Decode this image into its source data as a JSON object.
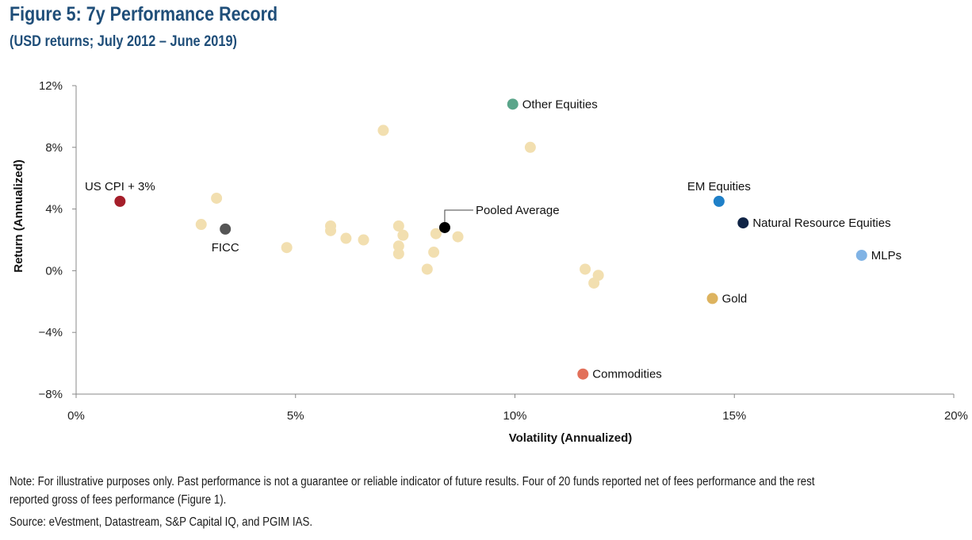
{
  "title": "Figure 5: 7y Performance Record",
  "subtitle": "(USD returns; July 2012 – June 2019)",
  "note": "Note: For illustrative purposes only. Past performance is not a guarantee or reliable indicator of future results. Four of 20 funds reported net of fees performance and the rest reported gross of fees performance (Figure 1).",
  "source": "Source: eVestment, Datastream, S&P Capital IQ, and PGIM IAS.",
  "colors": {
    "title": "#1f4e79",
    "fund": "#f2dfb0",
    "axis": "#888888"
  },
  "chart_data": {
    "type": "scatter",
    "xlabel": "Volatility (Annualized)",
    "ylabel": "Return (Annualized)",
    "xlim": [
      0,
      20
    ],
    "ylim": [
      -8,
      12
    ],
    "xticks": [
      0,
      5,
      10,
      15,
      20
    ],
    "yticks": [
      -8,
      -4,
      0,
      4,
      8,
      12
    ],
    "xtick_labels": [
      "0%",
      "5%",
      "10%",
      "15%",
      "20%"
    ],
    "ytick_labels": [
      "−8%",
      "−4%",
      "0%",
      "4%",
      "8%",
      "12%"
    ],
    "funds": [
      {
        "x": 2.85,
        "y": 3.0
      },
      {
        "x": 3.2,
        "y": 4.7
      },
      {
        "x": 4.8,
        "y": 1.5
      },
      {
        "x": 5.8,
        "y": 2.9
      },
      {
        "x": 5.8,
        "y": 2.6
      },
      {
        "x": 6.15,
        "y": 2.1
      },
      {
        "x": 6.55,
        "y": 2.0
      },
      {
        "x": 7.0,
        "y": 9.1
      },
      {
        "x": 7.35,
        "y": 2.9
      },
      {
        "x": 7.45,
        "y": 2.3
      },
      {
        "x": 7.35,
        "y": 1.6
      },
      {
        "x": 7.35,
        "y": 1.1
      },
      {
        "x": 8.0,
        "y": 0.1
      },
      {
        "x": 8.15,
        "y": 1.2
      },
      {
        "x": 8.2,
        "y": 2.4
      },
      {
        "x": 8.7,
        "y": 2.2
      },
      {
        "x": 10.35,
        "y": 8.0
      },
      {
        "x": 11.6,
        "y": 0.1
      },
      {
        "x": 11.9,
        "y": -0.3
      },
      {
        "x": 11.8,
        "y": -0.8
      }
    ],
    "benchmarks": [
      {
        "name": "Other Equities",
        "x": 9.95,
        "y": 10.8,
        "color": "#5aa58a",
        "label_pos": "right"
      },
      {
        "name": "US CPI + 3%",
        "x": 1.0,
        "y": 4.5,
        "color": "#a51e2a",
        "label_pos": "above"
      },
      {
        "name": "FICC",
        "x": 3.4,
        "y": 2.7,
        "color": "#555555",
        "label_pos": "below"
      },
      {
        "name": "Pooled Average",
        "x": 8.4,
        "y": 2.8,
        "color": "#000000",
        "label_pos": "callout"
      },
      {
        "name": "EM Equities",
        "x": 14.65,
        "y": 4.5,
        "color": "#1f80c8",
        "label_pos": "above"
      },
      {
        "name": "Natural Resource Equities",
        "x": 15.2,
        "y": 3.1,
        "color": "#0f2345",
        "label_pos": "right"
      },
      {
        "name": "MLPs",
        "x": 17.9,
        "y": 1.0,
        "color": "#80b3e5",
        "label_pos": "right"
      },
      {
        "name": "Gold",
        "x": 14.5,
        "y": -1.8,
        "color": "#ddb35f",
        "label_pos": "right"
      },
      {
        "name": "Commodities",
        "x": 11.55,
        "y": -6.7,
        "color": "#e2705a",
        "label_pos": "right"
      }
    ]
  }
}
